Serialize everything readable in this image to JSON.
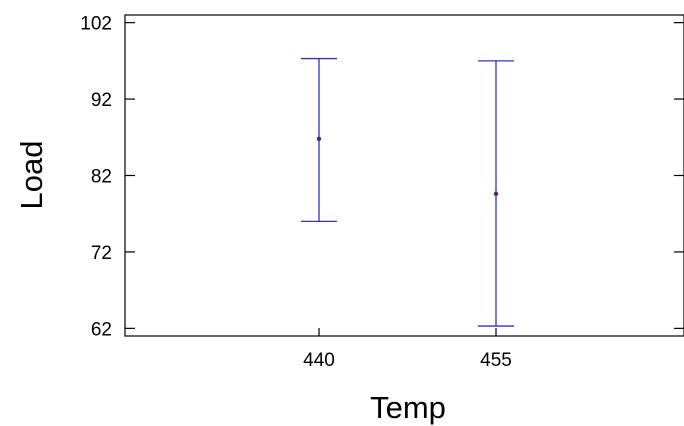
{
  "chart_data": {
    "type": "interval",
    "title": "",
    "xlabel": "Temp",
    "ylabel": "Load",
    "categories": [
      "440",
      "455"
    ],
    "means": [
      86.8,
      79.6
    ],
    "lower": [
      76.0,
      62.3
    ],
    "upper": [
      97.3,
      97.0
    ],
    "ylim": [
      61.0,
      103.0
    ],
    "yticks": [
      62,
      72,
      82,
      92,
      102
    ],
    "grid": false,
    "legend": "none",
    "colors": {
      "interval": "#3333cc",
      "mean_point": "#5a1f6e",
      "axis": "#000000"
    }
  }
}
